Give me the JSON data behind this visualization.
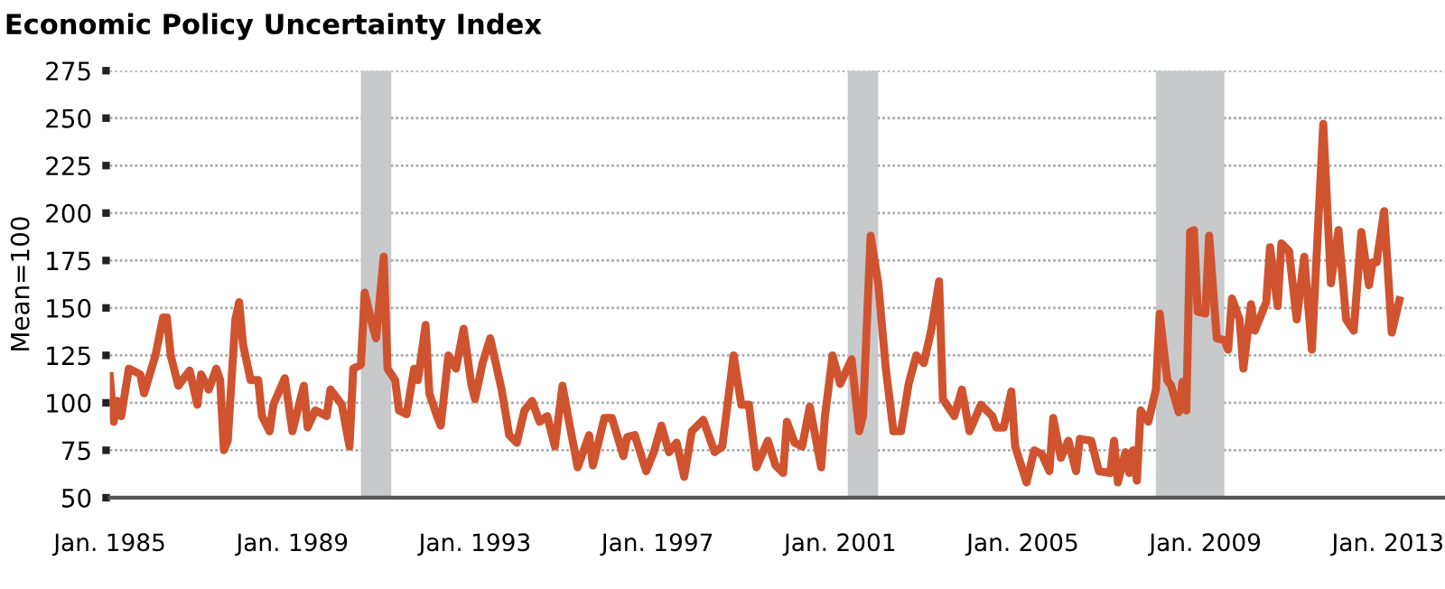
{
  "chart_data": {
    "type": "line",
    "title": "Economic Policy Uncertainty Index",
    "ylabel": "Mean=100",
    "x": [
      "1985-01",
      "1985-02",
      "1985-03",
      "1985-04",
      "1985-06",
      "1985-09",
      "1985-10",
      "1986-01",
      "1986-03",
      "1986-04",
      "1986-05",
      "1986-07",
      "1986-10",
      "1986-12",
      "1987-01",
      "1987-03",
      "1987-05",
      "1987-06",
      "1987-07",
      "1987-08",
      "1987-10",
      "1987-11",
      "1987-12",
      "1988-02",
      "1988-04",
      "1988-05",
      "1988-07",
      "1988-08",
      "1988-11",
      "1989-01",
      "1989-04",
      "1989-05",
      "1989-07",
      "1989-10",
      "1989-11",
      "1990-02",
      "1990-04",
      "1990-05",
      "1990-07",
      "1990-08",
      "1990-10",
      "1990-11",
      "1991-01",
      "1991-02",
      "1991-04",
      "1991-05",
      "1991-07",
      "1991-09",
      "1991-10",
      "1991-12",
      "1992-01",
      "1992-03",
      "1992-04",
      "1992-06",
      "1992-08",
      "1992-10",
      "1992-12",
      "1993-01",
      "1993-03",
      "1993-05",
      "1993-08",
      "1993-10",
      "1993-12",
      "1994-02",
      "1994-04",
      "1994-06",
      "1994-08",
      "1994-10",
      "1994-12",
      "1995-02",
      "1995-04",
      "1995-07",
      "1995-08",
      "1995-11",
      "1996-01",
      "1996-04",
      "1996-05",
      "1996-07",
      "1996-10",
      "1996-12",
      "1997-02",
      "1997-04",
      "1997-06",
      "1997-08",
      "1997-10",
      "1998-01",
      "1998-04",
      "1998-06",
      "1998-09",
      "1998-11",
      "1999-01",
      "1999-03",
      "1999-06",
      "1999-08",
      "1999-10",
      "1999-11",
      "2000-01",
      "2000-03",
      "2000-05",
      "2000-08",
      "2000-09",
      "2000-11",
      "2001-01",
      "2001-04",
      "2001-06",
      "2001-07",
      "2001-09",
      "2001-11",
      "2002-01",
      "2002-03",
      "2002-05",
      "2002-07",
      "2002-09",
      "2002-11",
      "2003-01",
      "2003-03",
      "2003-04",
      "2003-07",
      "2003-09",
      "2003-11",
      "2004-02",
      "2004-05",
      "2004-06",
      "2004-08",
      "2004-10",
      "2004-11",
      "2005-02",
      "2005-04",
      "2005-06",
      "2005-08",
      "2005-09",
      "2005-11",
      "2006-01",
      "2006-03",
      "2006-04",
      "2006-07",
      "2006-09",
      "2006-12",
      "2007-01",
      "2007-02",
      "2007-04",
      "2007-05",
      "2007-06",
      "2007-07",
      "2007-08",
      "2007-10",
      "2007-12",
      "2008-01",
      "2008-03",
      "2008-04",
      "2008-06",
      "2008-07",
      "2008-08",
      "2008-09",
      "2008-10",
      "2008-11",
      "2009-01",
      "2009-02",
      "2009-04",
      "2009-06",
      "2009-07",
      "2009-08",
      "2009-10",
      "2009-11",
      "2010-01",
      "2010-02",
      "2010-05",
      "2010-06",
      "2010-08",
      "2010-09",
      "2010-11",
      "2011-01",
      "2011-03",
      "2011-05",
      "2011-08",
      "2011-10",
      "2011-12",
      "2012-02",
      "2012-04",
      "2012-06",
      "2012-08",
      "2012-09",
      "2012-10",
      "2012-12",
      "2013-02",
      "2013-04"
    ],
    "series": [
      {
        "color": "#d0532f",
        "values": [
          114,
          90,
          101,
          93,
          118,
          115,
          105,
          125,
          145,
          145,
          125,
          109,
          117,
          99,
          115,
          107,
          118,
          112,
          75,
          80,
          144,
          153,
          131,
          112,
          112,
          93,
          85,
          99,
          113,
          85,
          109,
          87,
          96,
          93,
          107,
          99,
          77,
          118,
          120,
          158,
          141,
          134,
          177,
          118,
          112,
          96,
          94,
          118,
          112,
          141,
          105,
          93,
          88,
          125,
          118,
          139,
          110,
          102,
          121,
          134,
          107,
          83,
          79,
          96,
          101,
          90,
          93,
          77,
          109,
          87,
          66,
          83,
          67,
          92,
          92,
          72,
          82,
          83,
          64,
          74,
          88,
          74,
          79,
          61,
          85,
          91,
          74,
          77,
          125,
          99,
          99,
          66,
          80,
          67,
          63,
          90,
          79,
          77,
          98,
          66,
          93,
          125,
          110,
          123,
          85,
          93,
          188,
          163,
          118,
          85,
          85,
          110,
          125,
          121,
          139,
          164,
          102,
          93,
          107,
          85,
          99,
          93,
          87,
          87,
          106,
          77,
          58,
          75,
          73,
          64,
          92,
          71,
          80,
          64,
          81,
          80,
          64,
          63,
          80,
          58,
          74,
          63,
          75,
          59,
          96,
          90,
          107,
          147,
          112,
          109,
          95,
          111,
          96,
          190,
          191,
          148,
          147,
          188,
          134,
          133,
          128,
          155,
          144,
          118,
          152,
          138,
          153,
          182,
          151,
          184,
          180,
          144,
          177,
          128,
          247,
          163,
          191,
          144,
          138,
          190,
          162,
          174,
          174,
          201,
          137,
          154
        ]
      }
    ],
    "xlim": [
      "1985-01",
      "2014-04"
    ],
    "ylim": [
      50,
      275
    ],
    "xticks": [
      {
        "value": "1985-01",
        "label": "Jan. 1985"
      },
      {
        "value": "1989-01",
        "label": "Jan. 1989"
      },
      {
        "value": "1993-01",
        "label": "Jan. 1993"
      },
      {
        "value": "1997-01",
        "label": "Jan. 1997"
      },
      {
        "value": "2001-01",
        "label": "Jan. 2001"
      },
      {
        "value": "2005-01",
        "label": "Jan. 2005"
      },
      {
        "value": "2009-01",
        "label": "Jan. 2009"
      },
      {
        "value": "2013-01",
        "label": "Jan. 2013"
      }
    ],
    "yticks": [
      50,
      75,
      100,
      125,
      150,
      175,
      200,
      225,
      250,
      275
    ],
    "bands": [
      {
        "axis": "x",
        "from": "1990-07",
        "to": "1991-03",
        "color": "#c8c9cb"
      },
      {
        "axis": "x",
        "from": "2001-03",
        "to": "2001-11",
        "color": "#c8c9cb"
      },
      {
        "axis": "x",
        "from": "2007-12",
        "to": "2009-06",
        "color": "#c8c9cb"
      }
    ],
    "grid": "y",
    "line_style": "solid",
    "marker": "none",
    "legend": false
  }
}
